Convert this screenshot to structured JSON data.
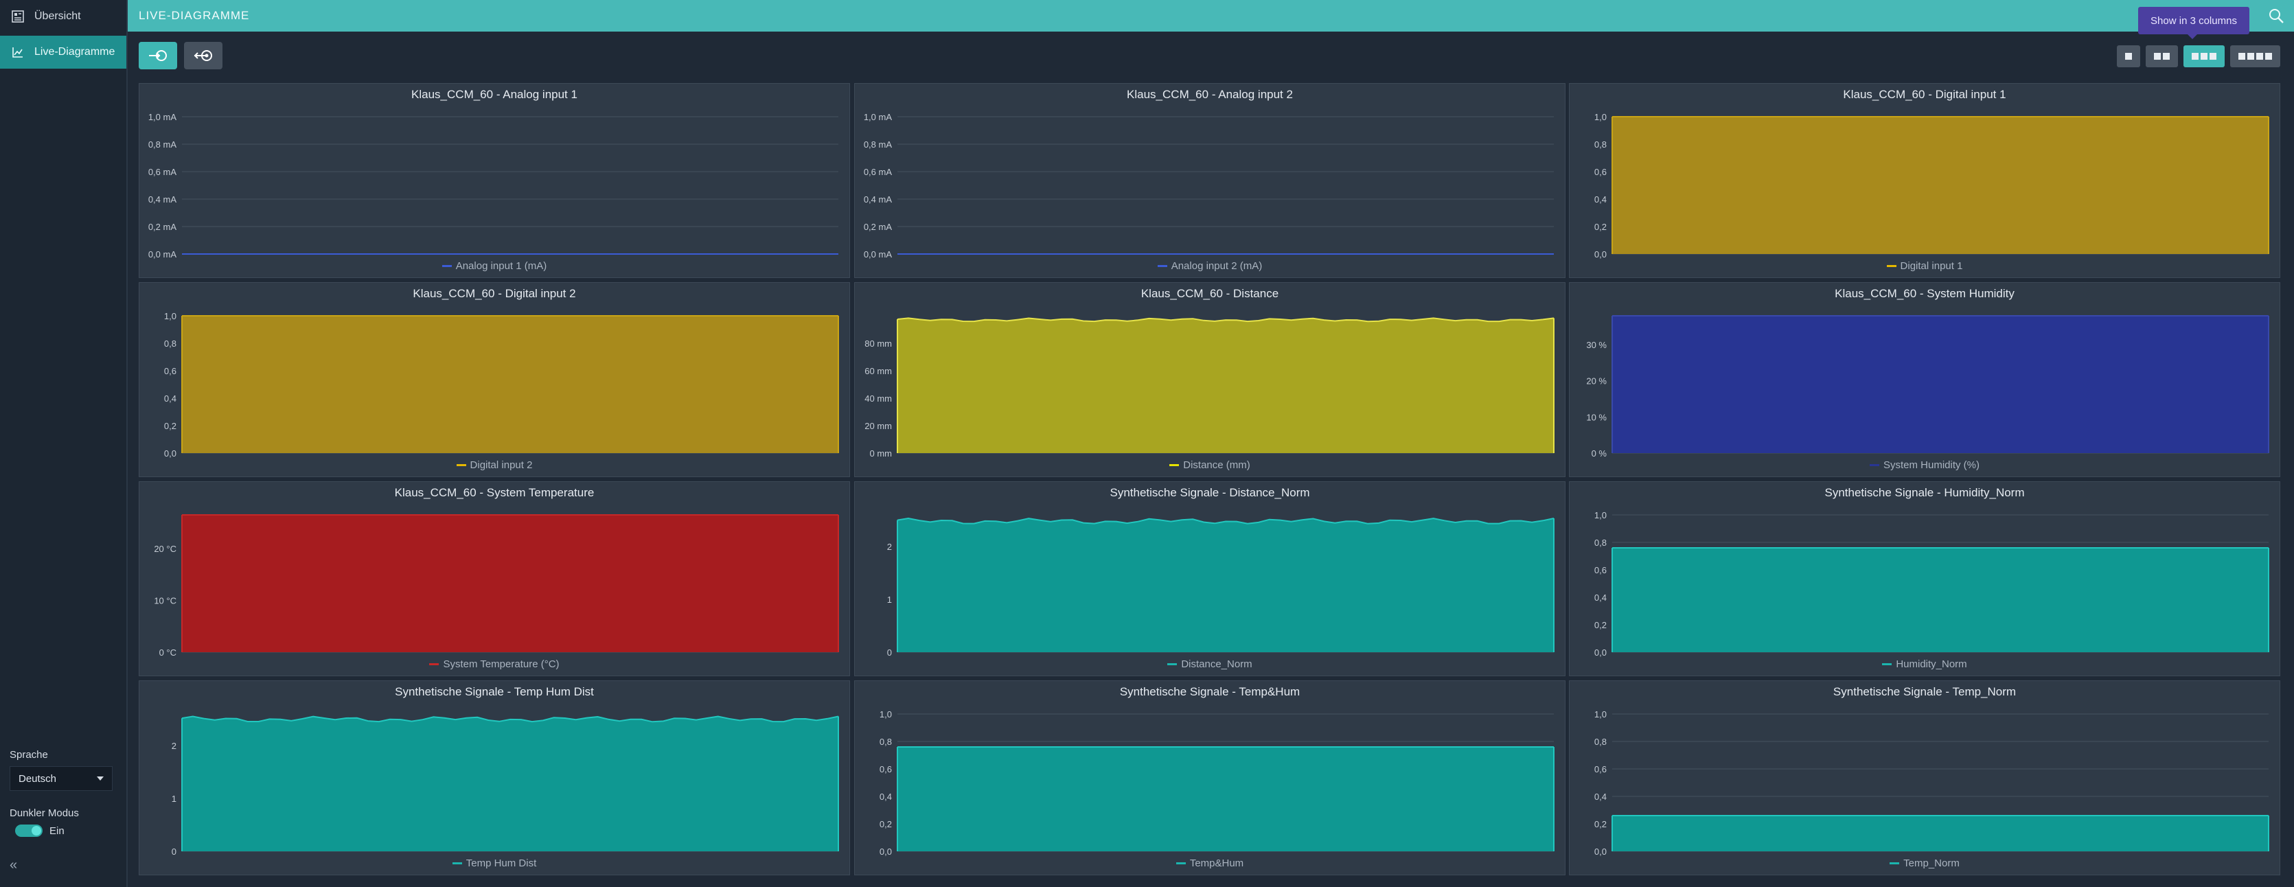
{
  "sidebar": {
    "items": [
      {
        "label": "Übersicht",
        "icon": "dashboard-icon"
      },
      {
        "label": "Live-Diagramme",
        "icon": "line-chart-icon"
      }
    ],
    "language_label": "Sprache",
    "language_value": "Deutsch",
    "dark_mode_label": "Dunkler Modus",
    "dark_mode_value": "Ein"
  },
  "header": {
    "title": "LIVE-DIAGRAMME"
  },
  "toolbar": {
    "tooltip": "Show in 3 columns",
    "active_columns": 3
  },
  "colors": {
    "teal": "#0f9892",
    "gold": "#a88a1c",
    "olive": "#a8a521",
    "navy": "#283593",
    "red": "#a61c1f",
    "blue_line": "#3b5bd6"
  },
  "charts": [
    {
      "title": "Klaus_CCM_60 - Analog input 1",
      "legend": "Analog input 1 (mA)",
      "legend_color": "#3b5bd6"
    },
    {
      "title": "Klaus_CCM_60 - Analog input 2",
      "legend": "Analog input 2 (mA)",
      "legend_color": "#3b5bd6"
    },
    {
      "title": "Klaus_CCM_60 - Digital input 1",
      "legend": "Digital input 1",
      "legend_color": "#e6b800"
    },
    {
      "title": "Klaus_CCM_60 - Digital input 2",
      "legend": "Digital input 2",
      "legend_color": "#e6b800"
    },
    {
      "title": "Klaus_CCM_60 - Distance",
      "legend": "Distance (mm)",
      "legend_color": "#e6e200"
    },
    {
      "title": "Klaus_CCM_60 - System Humidity",
      "legend": "System Humidity (%)",
      "legend_color": "#283593"
    },
    {
      "title": "Klaus_CCM_60 - System Temperature",
      "legend": "System Temperature (°C)",
      "legend_color": "#c62828"
    },
    {
      "title": "Synthetische Signale - Distance_Norm",
      "legend": "Distance_Norm",
      "legend_color": "#1bb5ae"
    },
    {
      "title": "Synthetische Signale - Humidity_Norm",
      "legend": "Humidity_Norm",
      "legend_color": "#1bb5ae"
    },
    {
      "title": "Synthetische Signale - Temp Hum Dist",
      "legend": "Temp Hum Dist",
      "legend_color": "#1bb5ae"
    },
    {
      "title": "Synthetische Signale - Temp&Hum",
      "legend": "Temp&Hum",
      "legend_color": "#1bb5ae"
    },
    {
      "title": "Synthetische Signale - Temp_Norm",
      "legend": "Temp_Norm",
      "legend_color": "#1bb5ae"
    }
  ],
  "chart_data": [
    {
      "type": "line",
      "title": "Klaus_CCM_60 - Analog input 1",
      "series": [
        {
          "name": "Analog input 1 (mA)",
          "level": 0.0
        }
      ],
      "yticks": [
        "0,0 mA",
        "0,2 mA",
        "0,4 mA",
        "0,6 mA",
        "0,8 mA",
        "1,0 mA"
      ],
      "ylim": [
        0,
        1.0
      ],
      "fill": false,
      "color": "#3b5bd6"
    },
    {
      "type": "line",
      "title": "Klaus_CCM_60 - Analog input 2",
      "series": [
        {
          "name": "Analog input 2 (mA)",
          "level": 0.0
        }
      ],
      "yticks": [
        "0,0 mA",
        "0,2 mA",
        "0,4 mA",
        "0,6 mA",
        "0,8 mA",
        "1,0 mA"
      ],
      "ylim": [
        0,
        1.0
      ],
      "fill": false,
      "color": "#3b5bd6"
    },
    {
      "type": "area",
      "title": "Klaus_CCM_60 - Digital input 1",
      "series": [
        {
          "name": "Digital input 1",
          "level": 1.0
        }
      ],
      "yticks": [
        "0,0",
        "0,2",
        "0,4",
        "0,6",
        "0,8",
        "1,0"
      ],
      "ylim": [
        0,
        1.0
      ],
      "fill": true,
      "color": "#a88a1c",
      "stroke": "#c9a416"
    },
    {
      "type": "area",
      "title": "Klaus_CCM_60 - Digital input 2",
      "series": [
        {
          "name": "Digital input 2",
          "level": 1.0
        }
      ],
      "yticks": [
        "0,0",
        "0,2",
        "0,4",
        "0,6",
        "0,8",
        "1,0"
      ],
      "ylim": [
        0,
        1.0
      ],
      "fill": true,
      "color": "#a88a1c",
      "stroke": "#c9a416"
    },
    {
      "type": "area",
      "title": "Klaus_CCM_60 - Distance",
      "series": [
        {
          "name": "Distance (mm)",
          "level": 97,
          "noise": 1.2
        }
      ],
      "yticks": [
        "0 mm",
        "20 mm",
        "40 mm",
        "60 mm",
        "80 mm"
      ],
      "ylim": [
        0,
        100
      ],
      "fill": true,
      "color": "#a8a521",
      "stroke": "#e6e34a"
    },
    {
      "type": "area",
      "title": "Klaus_CCM_60 - System Humidity",
      "series": [
        {
          "name": "System Humidity (%)",
          "level": 38
        }
      ],
      "yticks": [
        "0 %",
        "10 %",
        "20 %",
        "30 %"
      ],
      "ylim": [
        0,
        38
      ],
      "fill": true,
      "color": "#283593",
      "stroke": "#3949ab"
    },
    {
      "type": "area",
      "title": "Klaus_CCM_60 - System Temperature",
      "series": [
        {
          "name": "System Temperature (°C)",
          "level": 26.5
        }
      ],
      "yticks": [
        "0 °C",
        "10 °C",
        "20 °C"
      ],
      "ylim": [
        0,
        26.5
      ],
      "fill": true,
      "color": "#a61c1f",
      "stroke": "#c62828"
    },
    {
      "type": "area",
      "title": "Synthetische Signale - Distance_Norm",
      "series": [
        {
          "name": "Distance_Norm",
          "level": 2.48,
          "noise": 0.05
        }
      ],
      "yticks": [
        "0",
        "1",
        "2"
      ],
      "ylim": [
        0,
        2.6
      ],
      "fill": true,
      "color": "#0f9892",
      "stroke": "#22c7bf"
    },
    {
      "type": "area",
      "title": "Synthetische Signale - Humidity_Norm",
      "series": [
        {
          "name": "Humidity_Norm",
          "level": 0.76
        }
      ],
      "yticks": [
        "0,0",
        "0,2",
        "0,4",
        "0,6",
        "0,8",
        "1,0"
      ],
      "ylim": [
        0,
        1.0
      ],
      "fill": true,
      "color": "#0f9892",
      "stroke": "#22c7bf"
    },
    {
      "type": "area",
      "title": "Synthetische Signale - Temp Hum Dist",
      "series": [
        {
          "name": "Temp Hum Dist",
          "level": 2.5,
          "noise": 0.05
        }
      ],
      "yticks": [
        "0",
        "1",
        "2"
      ],
      "ylim": [
        0,
        2.6
      ],
      "fill": true,
      "color": "#0f9892",
      "stroke": "#22c7bf"
    },
    {
      "type": "area",
      "title": "Synthetische Signale - Temp&Hum",
      "series": [
        {
          "name": "Temp&Hum",
          "level": 0.76
        }
      ],
      "yticks": [
        "0,0",
        "0,2",
        "0,4",
        "0,6",
        "0,8",
        "1,0"
      ],
      "ylim": [
        0,
        1.0
      ],
      "fill": true,
      "color": "#0f9892",
      "stroke": "#22c7bf"
    },
    {
      "type": "area",
      "title": "Synthetische Signale - Temp_Norm",
      "series": [
        {
          "name": "Temp_Norm",
          "level": 0.26
        }
      ],
      "yticks": [
        "0,0",
        "0,2",
        "0,4",
        "0,6",
        "0,8",
        "1,0"
      ],
      "ylim": [
        0,
        1.0
      ],
      "fill": true,
      "color": "#0f9892",
      "stroke": "#22c7bf"
    }
  ]
}
